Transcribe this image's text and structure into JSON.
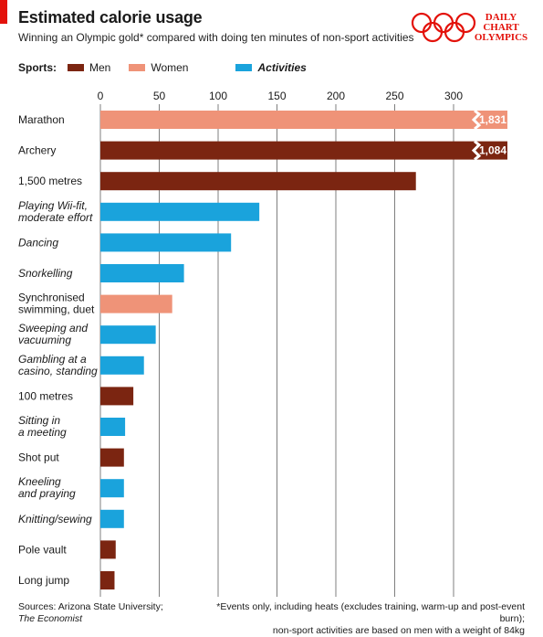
{
  "header": {
    "title": "Estimated calorie usage",
    "subtitle": "Winning an Olympic gold* compared with doing ten minutes of non-sport activities"
  },
  "logo": {
    "line1": "DAILY",
    "line2": "CHART",
    "line3": "OLYMPICS"
  },
  "legend": {
    "label": "Sports:",
    "men": "Men",
    "women": "Women",
    "activities": "Activities"
  },
  "colors": {
    "men": "#7b2511",
    "women": "#ef9378",
    "activities": "#1aa3dc",
    "accent": "#e3120b",
    "grid": "#7f7f7f"
  },
  "footer": {
    "sources_label": "Sources: Arizona State University;",
    "sources_publication": "The Economist",
    "note_line1": "*Events only, including heats (excludes training, warm-up and post-event burn);",
    "note_line2": "non-sport activities are based on men with a weight of 84kg"
  },
  "chart_data": {
    "type": "bar",
    "orientation": "horizontal",
    "xlim": [
      0,
      320
    ],
    "x_ticks": [
      "0",
      "50",
      "100",
      "150",
      "200",
      "250",
      "300"
    ],
    "grid": true,
    "items": [
      {
        "label_lines": [
          "Marathon"
        ],
        "group": "women",
        "value": 1831,
        "value_label": "1,831",
        "broken": true
      },
      {
        "label_lines": [
          "Archery"
        ],
        "group": "men",
        "value": 1084,
        "value_label": "1,084",
        "broken": true
      },
      {
        "label_lines": [
          "1,500 metres"
        ],
        "group": "men",
        "value": 268
      },
      {
        "label_lines": [
          "Playing Wii-fit,",
          "moderate effort"
        ],
        "group": "activities",
        "value": 135
      },
      {
        "label_lines": [
          "Dancing"
        ],
        "group": "activities",
        "value": 111
      },
      {
        "label_lines": [
          "Snorkelling"
        ],
        "group": "activities",
        "value": 71
      },
      {
        "label_lines": [
          "Synchronised",
          "swimming, duet"
        ],
        "group": "women",
        "value": 61
      },
      {
        "label_lines": [
          "Sweeping and",
          "vacuuming"
        ],
        "group": "activities",
        "value": 47
      },
      {
        "label_lines": [
          "Gambling at a",
          "casino, standing"
        ],
        "group": "activities",
        "value": 37
      },
      {
        "label_lines": [
          "100 metres"
        ],
        "group": "men",
        "value": 28
      },
      {
        "label_lines": [
          "Sitting in",
          "a meeting"
        ],
        "group": "activities",
        "value": 21
      },
      {
        "label_lines": [
          "Shot put"
        ],
        "group": "men",
        "value": 20
      },
      {
        "label_lines": [
          "Kneeling",
          "and praying"
        ],
        "group": "activities",
        "value": 20
      },
      {
        "label_lines": [
          "Knitting/sewing"
        ],
        "group": "activities",
        "value": 20
      },
      {
        "label_lines": [
          "Pole vault"
        ],
        "group": "men",
        "value": 13
      },
      {
        "label_lines": [
          "Long jump"
        ],
        "group": "men",
        "value": 12
      }
    ]
  }
}
